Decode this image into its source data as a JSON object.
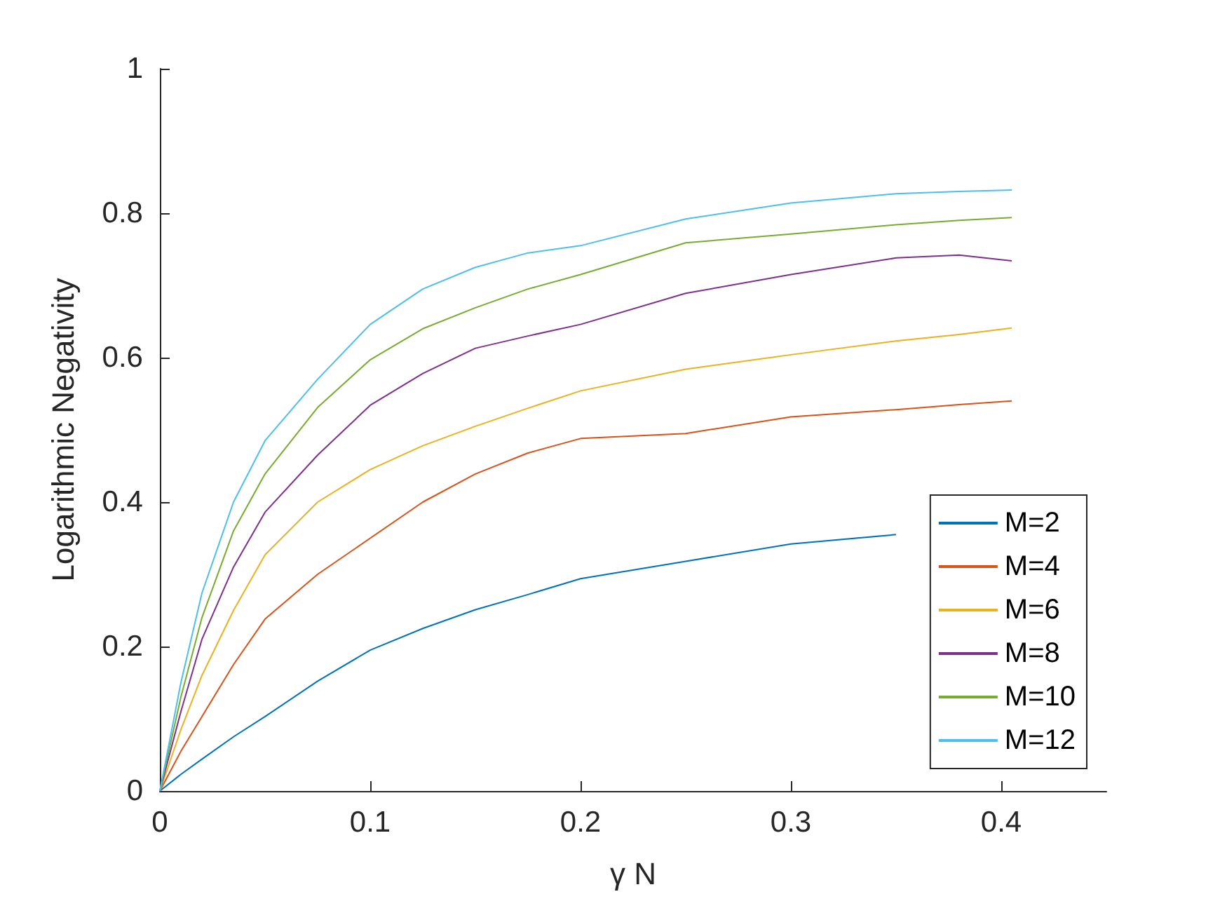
{
  "chart_data": {
    "type": "line",
    "xlabel": "γ N",
    "ylabel": "Logarithmic Negativity",
    "x": [
      0,
      0.01,
      0.02,
      0.035,
      0.05,
      0.075,
      0.1,
      0.125,
      0.15,
      0.175,
      0.2,
      0.25,
      0.3,
      0.35,
      0.38,
      0.405
    ],
    "series": [
      {
        "name": "M=2",
        "color": "#0072bd",
        "values": [
          0,
          0.023,
          0.044,
          0.075,
          0.103,
          0.152,
          0.195,
          0.225,
          0.251,
          0.272,
          0.294,
          0.318,
          0.342,
          0.355,
          null,
          null
        ]
      },
      {
        "name": "M=4",
        "color": "#d95319",
        "values": [
          0,
          0.055,
          0.103,
          0.175,
          0.238,
          0.3,
          0.35,
          0.4,
          0.439,
          0.468,
          0.488,
          0.495,
          0.518,
          0.528,
          0.535,
          0.54
        ]
      },
      {
        "name": "M=6",
        "color": "#edb120",
        "values": [
          0,
          0.085,
          0.16,
          0.25,
          0.327,
          0.4,
          0.445,
          0.478,
          0.505,
          0.53,
          0.554,
          0.584,
          0.604,
          0.623,
          0.632,
          0.641
        ]
      },
      {
        "name": "M=8",
        "color": "#7e2f8e",
        "values": [
          0,
          0.11,
          0.21,
          0.31,
          0.386,
          0.465,
          0.534,
          0.578,
          0.613,
          0.63,
          0.646,
          0.689,
          0.715,
          0.738,
          0.742,
          0.734
        ]
      },
      {
        "name": "M=10",
        "color": "#77ac30",
        "values": [
          0,
          0.13,
          0.24,
          0.36,
          0.439,
          0.531,
          0.597,
          0.64,
          0.669,
          0.695,
          0.715,
          0.759,
          0.771,
          0.784,
          0.79,
          0.794
        ]
      },
      {
        "name": "M=12",
        "color": "#4dbeee",
        "values": [
          0,
          0.15,
          0.274,
          0.4,
          0.485,
          0.57,
          0.646,
          0.695,
          0.725,
          0.745,
          0.755,
          0.792,
          0.814,
          0.827,
          0.83,
          0.832
        ]
      }
    ],
    "xlim": [
      0,
      0.45
    ],
    "xticks": [
      0,
      0.1,
      0.2,
      0.3,
      0.4
    ],
    "ylim": [
      0,
      1
    ],
    "yticks": [
      0,
      0.2,
      0.4,
      0.6,
      0.8,
      1
    ],
    "grid": false,
    "legend": "bottom right",
    "marker": "none",
    "line_style": "solid"
  }
}
